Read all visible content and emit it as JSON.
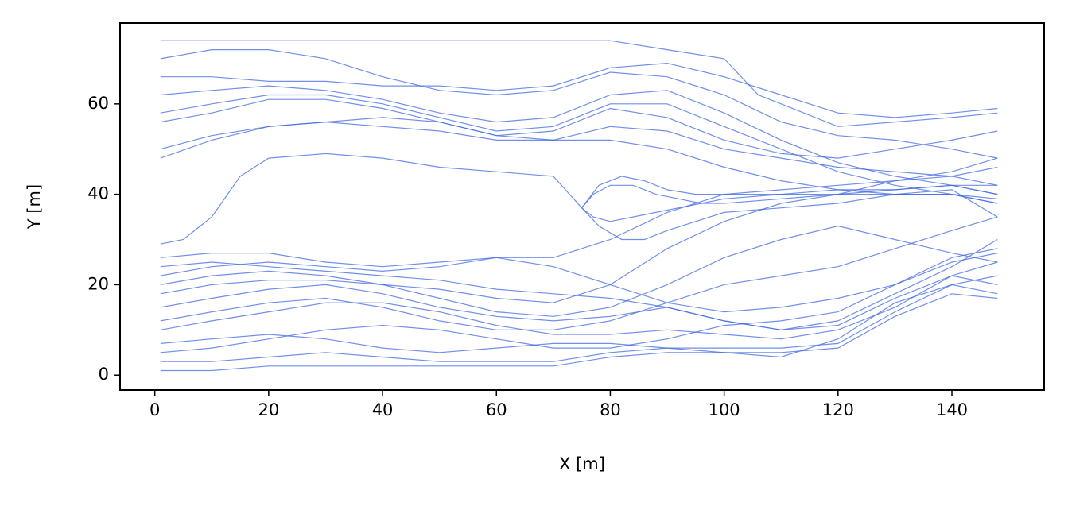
{
  "chart_data": {
    "type": "line",
    "xlabel": "X [m]",
    "ylabel": "Y [m]",
    "color": "#4169e1",
    "xlim": [
      -6.1,
      156.2
    ],
    "ylim": [
      -3.3,
      77.9
    ],
    "xticks": [
      0,
      20,
      40,
      60,
      80,
      100,
      120,
      140
    ],
    "yticks": [
      0,
      20,
      40,
      60
    ],
    "series": [
      {
        "x": [
          1,
          10,
          20,
          30,
          40,
          50,
          60,
          70,
          80,
          90,
          100,
          110,
          120,
          130,
          140,
          148
        ],
        "values": [
          56,
          58,
          61,
          61,
          59,
          56,
          53,
          54,
          59,
          57,
          52,
          49,
          48,
          50,
          52,
          54
        ]
      },
      {
        "x": [
          1,
          10,
          20,
          30,
          40,
          50,
          60,
          70,
          80,
          90,
          100,
          110,
          120,
          130,
          140,
          148
        ],
        "values": [
          66,
          66,
          65,
          65,
          64,
          64,
          63,
          64,
          68,
          69,
          66,
          62,
          58,
          57,
          58,
          59
        ]
      },
      {
        "x": [
          1,
          10,
          20,
          30,
          40,
          50,
          60,
          70,
          80,
          90,
          100,
          110,
          120,
          130,
          140,
          148
        ],
        "values": [
          70,
          72,
          72,
          70,
          66,
          63,
          62,
          63,
          67,
          66,
          62,
          56,
          53,
          52,
          50,
          48
        ]
      },
      {
        "x": [
          1,
          10,
          20,
          30,
          40,
          50,
          60,
          70,
          80,
          90,
          100,
          110,
          120,
          130,
          140,
          148
        ],
        "values": [
          48,
          52,
          55,
          56,
          55,
          54,
          52,
          52,
          55,
          54,
          50,
          48,
          46,
          45,
          44,
          46
        ]
      },
      {
        "x": [
          1,
          10,
          20,
          30,
          40,
          50,
          60,
          63,
          70,
          80,
          90,
          100,
          106,
          110,
          120,
          130,
          140,
          148
        ],
        "values": [
          74,
          74,
          74,
          74,
          74,
          74,
          74,
          74,
          74,
          74,
          72,
          70,
          62,
          60,
          55,
          56,
          57,
          58
        ]
      },
      {
        "x": [
          1,
          10,
          20,
          30,
          40,
          50,
          60,
          70,
          80,
          90,
          100,
          110,
          120,
          130,
          140,
          148
        ],
        "values": [
          58,
          60,
          62,
          62,
          60,
          57,
          54,
          55,
          60,
          60,
          55,
          50,
          45,
          42,
          40,
          38
        ]
      },
      {
        "x": [
          1,
          10,
          20,
          30,
          40,
          50,
          60,
          70,
          80,
          90,
          100,
          110,
          120,
          130,
          140,
          148
        ],
        "values": [
          62,
          63,
          64,
          63,
          61,
          58,
          56,
          57,
          62,
          63,
          58,
          52,
          47,
          44,
          42,
          40
        ]
      },
      {
        "x": [
          1,
          10,
          20,
          30,
          40,
          50,
          60,
          70,
          80,
          90,
          100,
          110,
          120,
          130,
          140,
          148
        ],
        "values": [
          50,
          53,
          55,
          56,
          57,
          56,
          53,
          52,
          52,
          50,
          46,
          43,
          41,
          40,
          40,
          39
        ]
      },
      {
        "x": [
          1,
          5,
          10,
          15,
          20,
          30,
          40,
          50,
          60,
          70,
          75
        ],
        "values": [
          29,
          30,
          35,
          44,
          48,
          49,
          48,
          46,
          45,
          44,
          37
        ]
      },
      {
        "x": [
          75,
          78,
          82,
          86,
          90,
          95,
          100,
          110,
          120,
          130,
          140,
          148
        ],
        "values": [
          37,
          42,
          44,
          43,
          41,
          40,
          40,
          41,
          42,
          43,
          45,
          48
        ]
      },
      {
        "x": [
          75,
          78,
          82,
          86,
          90,
          95,
          100,
          110,
          120,
          130,
          140,
          148
        ],
        "values": [
          37,
          33,
          30,
          30,
          32,
          34,
          36,
          37,
          38,
          40,
          40,
          38
        ]
      },
      {
        "x": [
          75,
          77,
          80,
          84,
          88,
          92,
          96,
          100,
          110,
          120,
          130,
          140,
          148
        ],
        "values": [
          37,
          40,
          42,
          42,
          40,
          39,
          38,
          39,
          40,
          41,
          41,
          42,
          42
        ]
      },
      {
        "x": [
          75,
          77,
          80,
          84,
          88,
          92,
          96,
          100,
          110,
          120,
          130,
          140,
          148
        ],
        "values": [
          37,
          35,
          34,
          35,
          36,
          37,
          38,
          38,
          39,
          40,
          40,
          41,
          35
        ]
      },
      {
        "x": [
          1,
          10,
          20,
          30,
          40,
          50,
          60,
          70,
          80,
          90,
          100,
          110,
          120,
          130,
          140,
          148
        ],
        "values": [
          22,
          24,
          25,
          24,
          23,
          24,
          26,
          24,
          20,
          16,
          14,
          15,
          17,
          20,
          25,
          27
        ]
      },
      {
        "x": [
          1,
          10,
          20,
          30,
          40,
          50,
          60,
          70,
          80,
          90,
          100,
          110,
          120,
          130,
          140,
          148
        ],
        "values": [
          15,
          17,
          19,
          20,
          18,
          15,
          13,
          12,
          13,
          15,
          12,
          10,
          12,
          18,
          24,
          30
        ]
      },
      {
        "x": [
          1,
          10,
          20,
          30,
          40,
          50,
          60,
          70,
          80,
          90,
          100,
          110,
          120,
          130,
          140,
          148
        ],
        "values": [
          10,
          12,
          14,
          16,
          16,
          14,
          11,
          9,
          9,
          10,
          9,
          8,
          10,
          15,
          22,
          25
        ]
      },
      {
        "x": [
          1,
          10,
          20,
          30,
          40,
          50,
          60,
          70,
          80,
          90,
          100,
          110,
          120,
          130,
          140,
          148
        ],
        "values": [
          3,
          3,
          4,
          5,
          4,
          3,
          3,
          3,
          5,
          6,
          6,
          6,
          7,
          14,
          20,
          22
        ]
      },
      {
        "x": [
          1,
          10,
          20,
          30,
          40,
          50,
          60,
          70,
          80,
          90,
          100,
          110,
          120,
          130,
          140,
          148
        ],
        "values": [
          1,
          1,
          2,
          2,
          2,
          2,
          2,
          2,
          4,
          5,
          5,
          5,
          6,
          13,
          18,
          17
        ]
      },
      {
        "x": [
          1,
          10,
          20,
          30,
          40,
          50,
          60,
          70,
          80,
          90,
          100,
          110,
          120,
          130,
          140,
          148
        ],
        "values": [
          7,
          8,
          9,
          8,
          6,
          5,
          6,
          7,
          7,
          6,
          5,
          4,
          8,
          16,
          20,
          18
        ]
      },
      {
        "x": [
          1,
          10,
          20,
          30,
          40,
          50,
          60,
          70,
          80,
          90,
          100,
          110,
          120,
          130,
          140,
          148
        ],
        "values": [
          26,
          27,
          27,
          25,
          24,
          25,
          26,
          26,
          30,
          36,
          40,
          40,
          40,
          41,
          42,
          40
        ]
      },
      {
        "x": [
          1,
          10,
          20,
          30,
          40,
          50,
          60,
          70,
          80,
          90,
          100,
          110,
          120,
          130,
          140,
          148
        ],
        "values": [
          18,
          20,
          21,
          21,
          20,
          19,
          17,
          16,
          20,
          28,
          34,
          38,
          40,
          43,
          44,
          42
        ]
      },
      {
        "x": [
          1,
          10,
          20,
          30,
          40,
          50,
          60,
          70,
          80,
          90,
          100,
          110,
          120,
          130,
          140,
          148
        ],
        "values": [
          12,
          14,
          16,
          17,
          15,
          12,
          10,
          10,
          12,
          16,
          20,
          22,
          24,
          28,
          32,
          35
        ]
      },
      {
        "x": [
          1,
          10,
          20,
          30,
          40,
          50,
          60,
          70,
          80,
          90,
          100,
          110,
          120,
          130,
          140,
          148
        ],
        "values": [
          20,
          22,
          23,
          22,
          20,
          17,
          14,
          13,
          15,
          20,
          26,
          30,
          33,
          30,
          27,
          25
        ]
      },
      {
        "x": [
          1,
          10,
          20,
          30,
          40,
          50,
          60,
          70,
          80,
          90,
          100,
          110,
          120,
          130,
          140,
          148
        ],
        "values": [
          5,
          6,
          8,
          10,
          11,
          10,
          8,
          6,
          6,
          8,
          11,
          12,
          14,
          20,
          26,
          28
        ]
      },
      {
        "x": [
          1,
          10,
          20,
          30,
          40,
          50,
          60,
          70,
          80,
          90,
          100,
          110,
          120,
          130,
          140,
          148
        ],
        "values": [
          24,
          25,
          24,
          23,
          22,
          21,
          19,
          18,
          17,
          15,
          12,
          10,
          11,
          17,
          22,
          20
        ]
      }
    ]
  }
}
